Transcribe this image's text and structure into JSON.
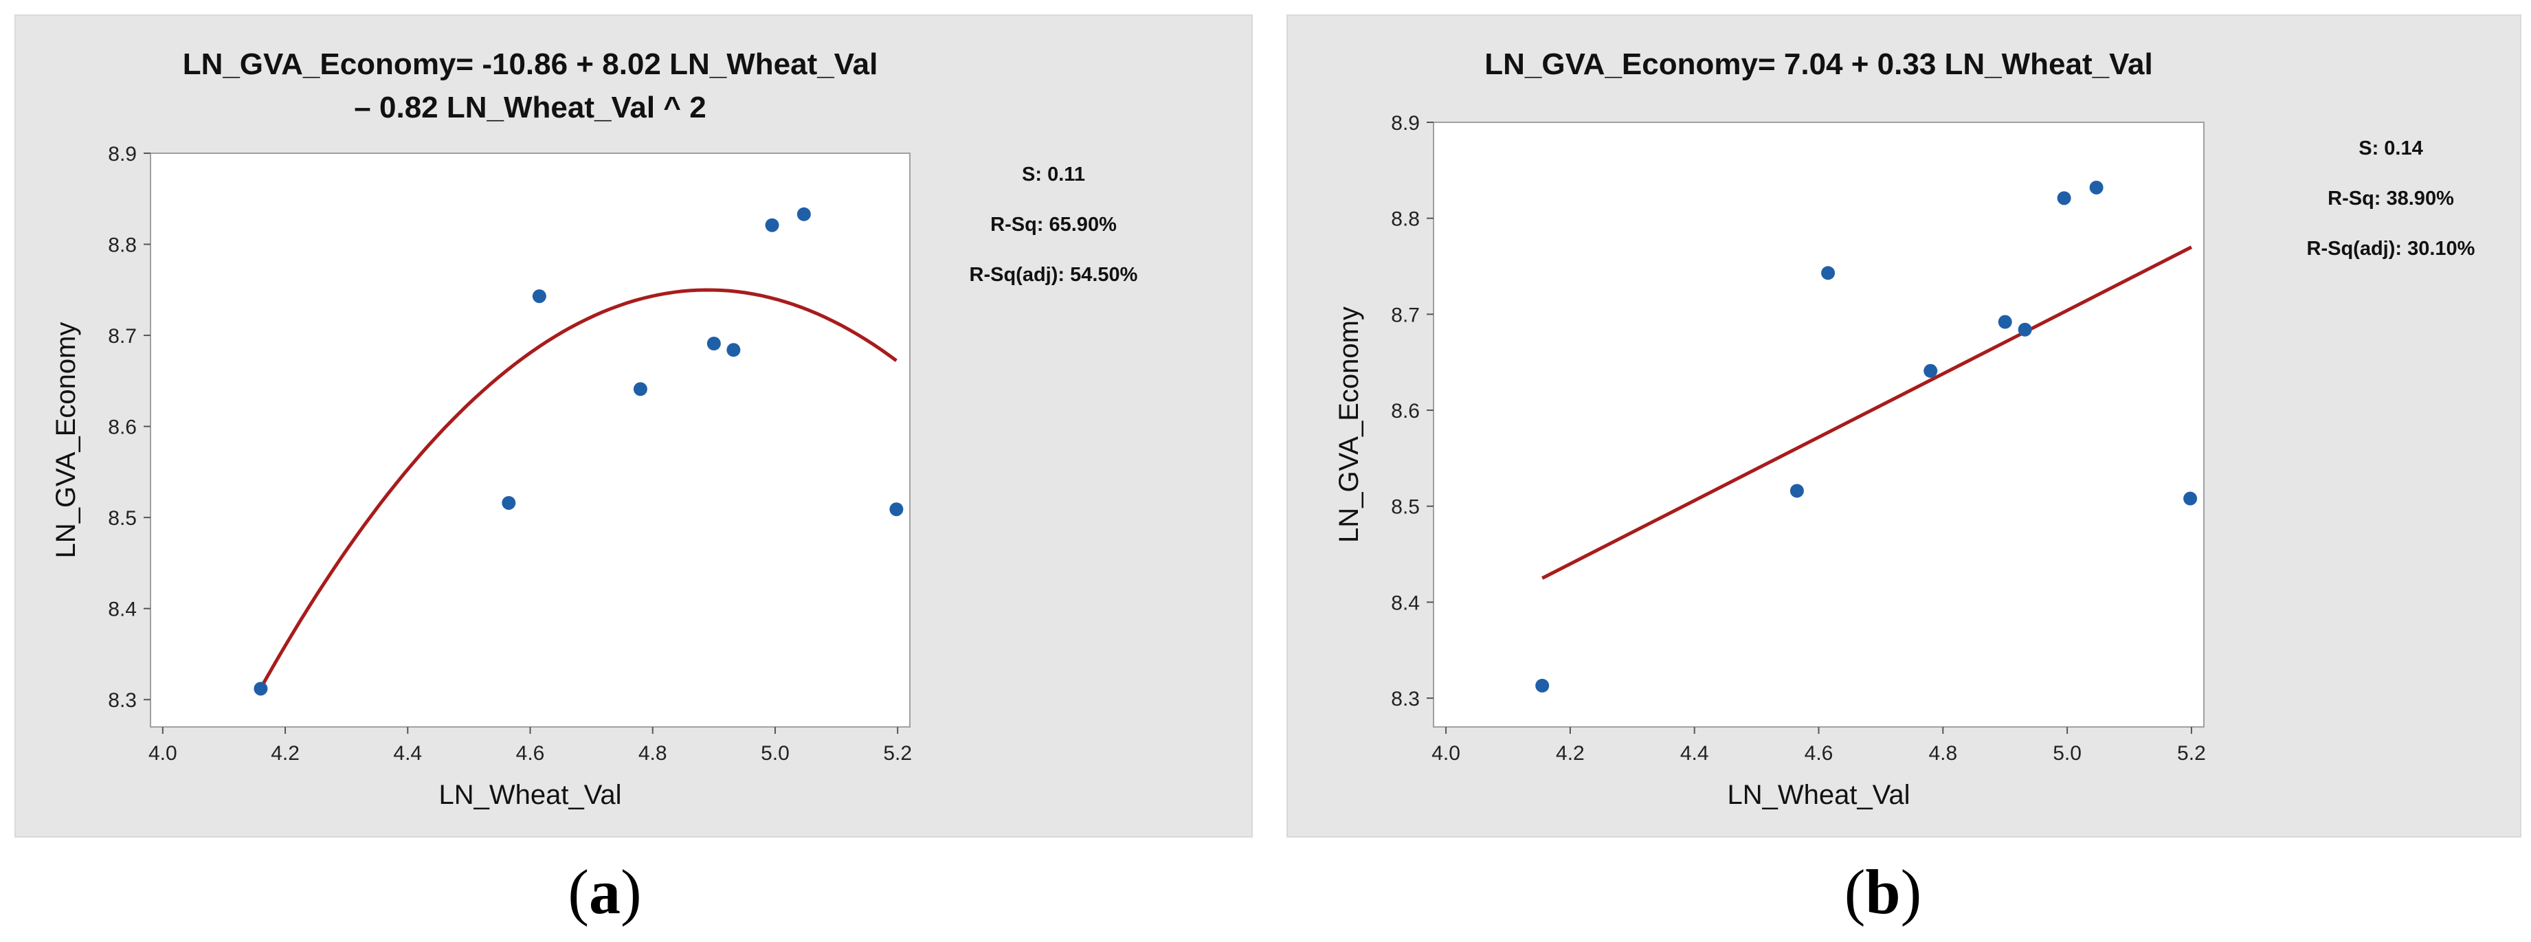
{
  "chart_data": [
    {
      "id": "a",
      "type": "scatter",
      "title_lines": [
        "LN_GVA_Economy= -10.86 + 8.02 LN_Wheat_Val",
        "– 0.82 LN_Wheat_Val ^ 2"
      ],
      "xlabel": "LN_Wheat_Val",
      "ylabel": "LN_GVA_Economy",
      "xlim": [
        3.98,
        5.22
      ],
      "ylim": [
        8.27,
        8.9
      ],
      "xticks": [
        4.0,
        4.2,
        4.4,
        4.6,
        4.8,
        5.0,
        5.2
      ],
      "xtick_labels": [
        "4.0",
        "4.2",
        "4.4",
        "4.6",
        "4.8",
        "5.0",
        "5.2"
      ],
      "yticks": [
        8.3,
        8.4,
        8.5,
        8.6,
        8.7,
        8.8,
        8.9
      ],
      "ytick_labels": [
        "8.3",
        "8.4",
        "8.5",
        "8.6",
        "8.7",
        "8.8",
        "8.9"
      ],
      "points": [
        {
          "x": 4.16,
          "y": 8.312
        },
        {
          "x": 4.565,
          "y": 8.516
        },
        {
          "x": 4.615,
          "y": 8.743
        },
        {
          "x": 4.78,
          "y": 8.641
        },
        {
          "x": 4.9,
          "y": 8.691
        },
        {
          "x": 4.932,
          "y": 8.684
        },
        {
          "x": 4.995,
          "y": 8.821
        },
        {
          "x": 5.047,
          "y": 8.833
        },
        {
          "x": 5.198,
          "y": 8.509
        }
      ],
      "fit": {
        "kind": "quadratic",
        "coefficients": [
          -10.86,
          8.02,
          -0.82
        ],
        "x_range": [
          4.16,
          5.198
        ]
      },
      "stats": [
        "S: 0.11",
        "R-Sq: 65.90%",
        "R-Sq(adj): 54.50%"
      ],
      "point_color": "#1f5fa8",
      "line_color": "#a81c1c",
      "caption": "a"
    },
    {
      "id": "b",
      "type": "scatter",
      "title_lines": [
        "LN_GVA_Economy= 7.04 + 0.33 LN_Wheat_Val"
      ],
      "xlabel": "LN_Wheat_Val",
      "ylabel": "LN_GVA_Economy",
      "xlim": [
        3.98,
        5.22
      ],
      "ylim": [
        8.27,
        8.9
      ],
      "xticks": [
        4.0,
        4.2,
        4.4,
        4.6,
        4.8,
        5.0,
        5.2
      ],
      "xtick_labels": [
        "4.0",
        "4.2",
        "4.4",
        "4.6",
        "4.8",
        "5.0",
        "5.2"
      ],
      "yticks": [
        8.3,
        8.4,
        8.5,
        8.6,
        8.7,
        8.8,
        8.9
      ],
      "ytick_labels": [
        "8.3",
        "8.4",
        "8.5",
        "8.6",
        "8.7",
        "8.8",
        "8.9"
      ],
      "points": [
        {
          "x": 4.155,
          "y": 8.313
        },
        {
          "x": 4.565,
          "y": 8.516
        },
        {
          "x": 4.615,
          "y": 8.743
        },
        {
          "x": 4.78,
          "y": 8.641
        },
        {
          "x": 4.9,
          "y": 8.692
        },
        {
          "x": 4.932,
          "y": 8.684
        },
        {
          "x": 4.995,
          "y": 8.821
        },
        {
          "x": 5.047,
          "y": 8.832
        },
        {
          "x": 5.198,
          "y": 8.508
        }
      ],
      "fit": {
        "kind": "linear",
        "points": [
          [
            4.155,
            8.425
          ],
          [
            5.2,
            8.77
          ]
        ]
      },
      "stats": [
        "S: 0.14",
        "R-Sq: 38.90%",
        "R-Sq(adj): 30.10%"
      ],
      "point_color": "#1f5fa8",
      "line_color": "#a81c1c",
      "caption": "b"
    }
  ]
}
